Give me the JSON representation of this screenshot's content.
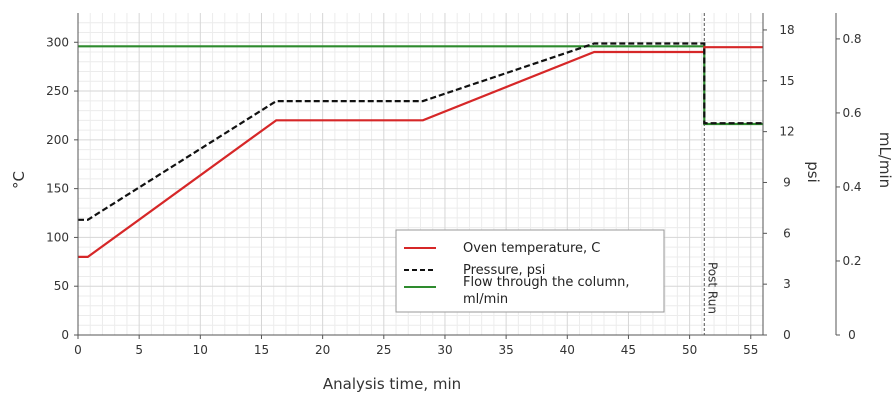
{
  "chart_data": {
    "type": "line",
    "xlabel": "Analysis time, min",
    "ylabel_left": "°C",
    "ylabel_right1": "psi",
    "ylabel_right2": "mL/min",
    "xlim": [
      0,
      56
    ],
    "ylim_left": [
      0,
      330
    ],
    "ylim_psi": [
      0,
      19
    ],
    "ylim_flow": [
      0,
      0.87
    ],
    "x_ticks": [
      0,
      5,
      10,
      15,
      20,
      25,
      30,
      35,
      40,
      45,
      50,
      55
    ],
    "y_left_ticks": [
      0,
      50,
      100,
      150,
      200,
      250,
      300
    ],
    "y_psi_ticks": [
      0,
      3,
      6,
      9,
      12,
      15,
      18
    ],
    "y_flow_ticks": [
      0,
      0.2,
      0.4,
      0.6,
      0.8
    ],
    "grid": true,
    "legend_position": "center-right",
    "post_run": {
      "x": 51.2,
      "label": "Post Run"
    },
    "series": [
      {
        "name": "Oven temperature, C",
        "axis": "left",
        "color": "#d62728",
        "style": "solid",
        "x": [
          0,
          0.8,
          16.2,
          28.2,
          42.2,
          51.2,
          51.2,
          56
        ],
        "y": [
          80,
          80,
          220,
          220,
          290,
          290,
          295,
          295
        ]
      },
      {
        "name": "Pressure, psi",
        "axis": "psi",
        "color": "#111111",
        "style": "dashed",
        "x": [
          0,
          0.8,
          16.2,
          28.2,
          42.2,
          51.2,
          51.2,
          56
        ],
        "y": [
          6.8,
          6.8,
          13.8,
          13.8,
          17.2,
          17.2,
          12.5,
          12.5
        ]
      },
      {
        "name": "Flow through the column, ml/min",
        "axis": "flow",
        "color": "#2e8b2e",
        "style": "solid",
        "x": [
          0,
          51.2,
          51.2,
          56
        ],
        "y": [
          0.78,
          0.78,
          0.57,
          0.57
        ]
      }
    ]
  }
}
